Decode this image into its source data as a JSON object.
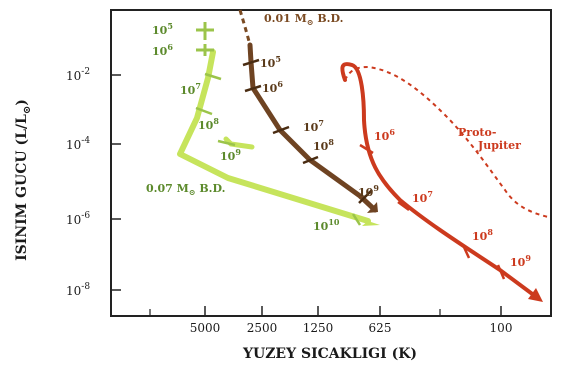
{
  "chart_data": {
    "type": "line",
    "title": "",
    "xlabel": "YUZEY SICAKLIGI (K)",
    "ylabel_main": "ISINIM GUCU (L/L",
    "ylabel_sub": "⊙",
    "ylabel_close": ")",
    "x_ticks": [
      "5000",
      "2500",
      "1250",
      "625",
      "100"
    ],
    "y_ticks": [
      {
        "base": "10",
        "exp": "-2"
      },
      {
        "base": "10",
        "exp": "-4"
      },
      {
        "base": "10",
        "exp": "-6"
      },
      {
        "base": "10",
        "exp": "-8"
      }
    ],
    "colors": {
      "green": "#8fb63a",
      "yellowgreen": "#c6e45c",
      "brown": "#7a4a22",
      "red": "#cc3a1e",
      "axis": "#222222"
    },
    "annotations": [
      {
        "name": "brown-dwarf-001-label",
        "text": "0.01 M",
        "sub": "⊙",
        "tail": " B.D.",
        "color": "#7a4a22"
      },
      {
        "name": "brown-dwarf-007-label",
        "text": "0.07 M",
        "sub": "⊙",
        "tail": " B.D.",
        "color": "#5c8a2c"
      },
      {
        "name": "proto-jupiter-label",
        "text": "Proto-",
        "text2": "Jupiter",
        "color": "#cc3a1e"
      }
    ],
    "age_labels": [
      {
        "name": "age-green-5",
        "base": "10",
        "exp": "5",
        "color": "#5c8a2c"
      },
      {
        "name": "age-green-6",
        "base": "10",
        "exp": "6",
        "color": "#5c8a2c"
      },
      {
        "name": "age-green-7",
        "base": "10",
        "exp": "7",
        "color": "#5c8a2c"
      },
      {
        "name": "age-green-8",
        "base": "10",
        "exp": "8",
        "color": "#5c8a2c"
      },
      {
        "name": "age-green-9",
        "base": "10",
        "exp": "9",
        "color": "#5c8a2c"
      },
      {
        "name": "age-green-10",
        "base": "10",
        "exp": "10",
        "color": "#5c8a2c"
      },
      {
        "name": "age-brown-5",
        "base": "10",
        "exp": "5",
        "color": "#5a3a1a"
      },
      {
        "name": "age-brown-6",
        "base": "10",
        "exp": "6",
        "color": "#5a3a1a"
      },
      {
        "name": "age-brown-7",
        "base": "10",
        "exp": "7",
        "color": "#5a3a1a"
      },
      {
        "name": "age-brown-8",
        "base": "10",
        "exp": "8",
        "color": "#5a3a1a"
      },
      {
        "name": "age-brown-9",
        "base": "10",
        "exp": "9",
        "color": "#5a3a1a"
      },
      {
        "name": "age-red-6",
        "base": "10",
        "exp": "6",
        "color": "#cc3a1e"
      },
      {
        "name": "age-red-7",
        "base": "10",
        "exp": "7",
        "color": "#cc3a1e"
      },
      {
        "name": "age-red-8",
        "base": "10",
        "exp": "8",
        "color": "#cc3a1e"
      },
      {
        "name": "age-red-9",
        "base": "10",
        "exp": "9",
        "color": "#cc3a1e"
      }
    ]
  }
}
